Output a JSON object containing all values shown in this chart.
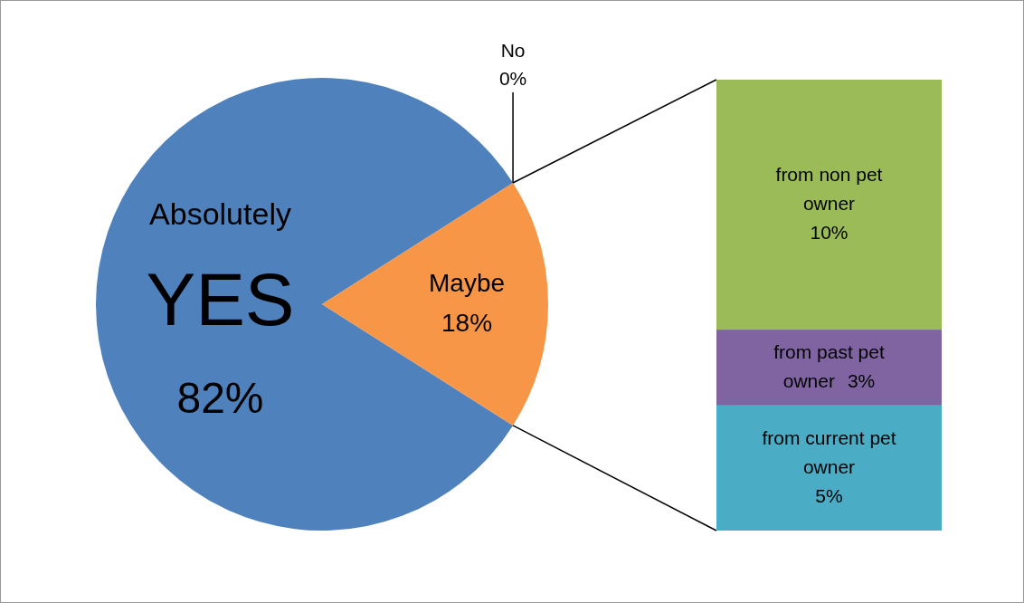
{
  "chart_data": [
    {
      "type": "pie",
      "categories": [
        "Absolutely YES",
        "No",
        "Maybe"
      ],
      "values": [
        82,
        0,
        18
      ],
      "colors": [
        "#4f81bd",
        "#c0504d",
        "#f79646"
      ],
      "value_labels": [
        "82%",
        "0%",
        "18%"
      ]
    },
    {
      "type": "bar",
      "stacked": true,
      "categories": [
        null
      ],
      "tick_labels": false,
      "series": [
        {
          "name": "from current pet owner",
          "color": "#4bacc6",
          "values": [
            5
          ],
          "value_labels": [
            "5%"
          ]
        },
        {
          "name": "from past pet owner",
          "color": "#8064a2",
          "values": [
            3
          ],
          "value_labels": [
            "3%"
          ]
        },
        {
          "name": "from non pet owner",
          "color": "#9bbb59",
          "values": [
            10
          ],
          "value_labels": [
            "10%"
          ]
        }
      ]
    }
  ]
}
